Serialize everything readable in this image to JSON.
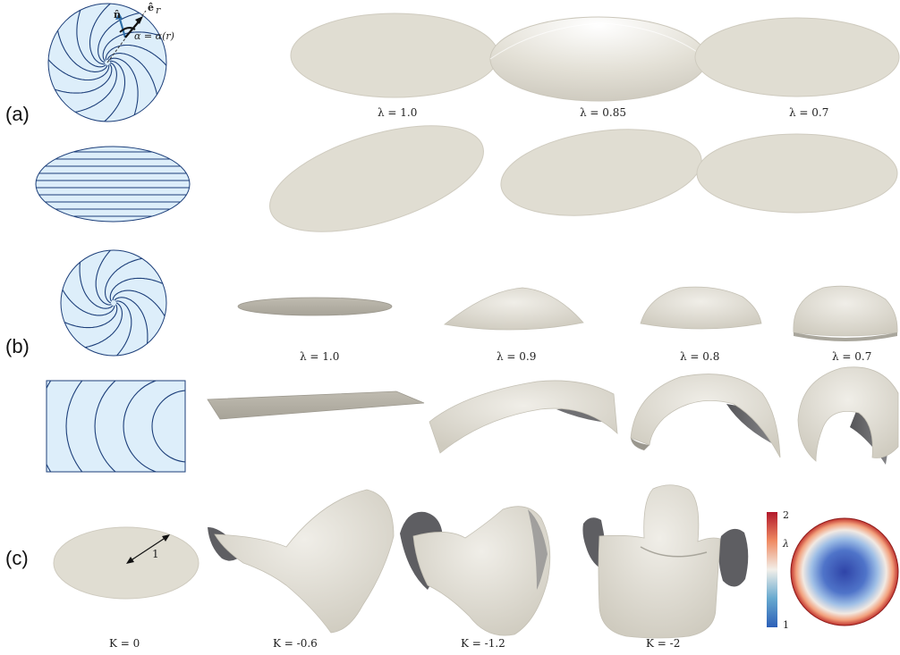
{
  "panels": {
    "a": "(a)",
    "b": "(b)",
    "c": "(c)"
  },
  "annotations": {
    "n_hat": "n̂",
    "e_r": "ê",
    "e_r_sub": "r",
    "alpha_eq": "α = α(r)",
    "length_one": "1"
  },
  "row_a_labels": [
    "λ = 1.0",
    "λ = 0.85",
    "λ = 0.7"
  ],
  "row_b_labels": [
    "λ = 1.0",
    "λ = 0.9",
    "λ = 0.8",
    "λ = 0.7"
  ],
  "row_c_labels": [
    "K = 0",
    "K = -0.6",
    "K = -1.2",
    "K = -2"
  ],
  "colorbar": {
    "max": "2",
    "min": "1",
    "symbol": "λ"
  },
  "colors": {
    "shell": "#e4e1d7",
    "shell_dark": "#cfccc1",
    "shadow": "#6e6e70",
    "pattern_fill": "#ddeefa",
    "pattern_line": "#1d3f7a",
    "cmap_high": "#b2182b",
    "cmap_mid": "#f2efe9",
    "cmap_low": "#2c5fb8"
  }
}
